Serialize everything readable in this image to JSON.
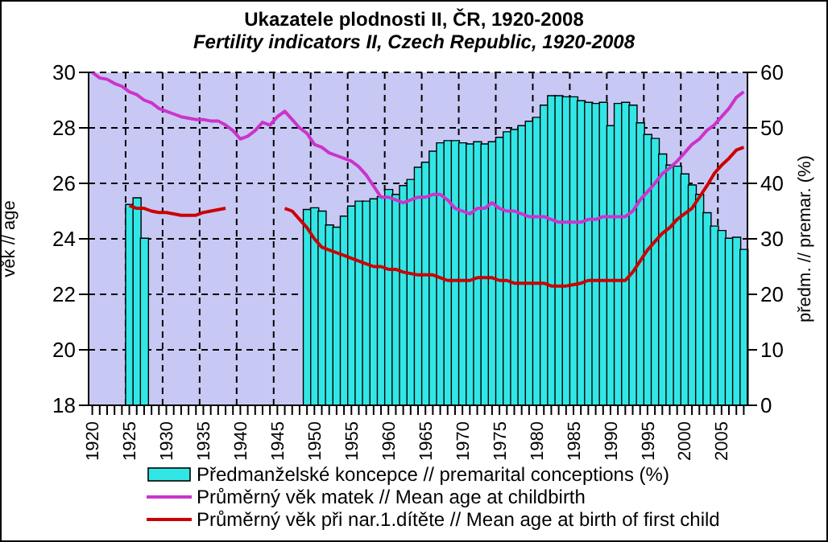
{
  "chart_data": {
    "type": "bar",
    "title": "Ukazatele plodnosti II, ČR, 1920-2008",
    "subtitle": "Fertility indicators II, Czech Republic, 1920-2008",
    "ylabel": "věk // age",
    "y2label": "předm. // premar. (%)",
    "categories": [
      "1920",
      null,
      null,
      null,
      null,
      "1925",
      null,
      null,
      null,
      null,
      "1930",
      null,
      null,
      null,
      null,
      "1935",
      null,
      null,
      null,
      null,
      "1940",
      null,
      null,
      null,
      null,
      "1945",
      null,
      null,
      null,
      null,
      "1950",
      null,
      null,
      null,
      null,
      "1955",
      null,
      null,
      null,
      null,
      "1960",
      null,
      null,
      null,
      null,
      "1965",
      null,
      null,
      null,
      null,
      "1970",
      null,
      null,
      null,
      null,
      "1975",
      null,
      null,
      null,
      null,
      "1980",
      null,
      null,
      null,
      null,
      "1985",
      null,
      null,
      null,
      null,
      "1990",
      null,
      null,
      null,
      null,
      "1995",
      null,
      null,
      null,
      null,
      "2000",
      null,
      null,
      null,
      null,
      "2005",
      null,
      null,
      null
    ],
    "series": [
      {
        "name": "Předmanželské koncepce // premarital conceptions (%)",
        "axis": "y2",
        "color": "#33e6e6",
        "values": [
          null,
          null,
          null,
          null,
          null,
          36.2,
          37.4,
          30.1,
          null,
          null,
          null,
          null,
          null,
          null,
          null,
          null,
          null,
          null,
          null,
          null,
          null,
          null,
          null,
          null,
          null,
          null,
          null,
          null,
          null,
          35.3,
          35.6,
          35.0,
          32.5,
          32.1,
          34.1,
          35.9,
          36.8,
          36.8,
          37.2,
          37.6,
          38.9,
          38.0,
          39.6,
          40.7,
          42.9,
          43.8,
          45.8,
          47.3,
          47.7,
          47.7,
          47.3,
          47.1,
          47.5,
          47.1,
          47.5,
          48.3,
          49.3,
          49.7,
          50.4,
          51.2,
          51.9,
          54.1,
          55.8,
          55.8,
          55.6,
          55.6,
          54.9,
          54.6,
          54.4,
          54.6,
          50.4,
          54.4,
          54.6,
          54.1,
          50.9,
          48.8,
          48.1,
          45.3,
          43.3,
          43.1,
          41.7,
          39.7,
          38.0,
          34.7,
          32.3,
          31.5,
          30.1,
          30.3,
          28.1
        ]
      },
      {
        "name": "Průměrný věk matek // Mean age at childbirth",
        "type": "line",
        "axis": "y",
        "color": "#cc33cc",
        "values": [
          30.0,
          29.8,
          29.75,
          29.6,
          29.5,
          29.3,
          29.2,
          29.0,
          28.9,
          28.7,
          28.6,
          28.5,
          28.4,
          28.35,
          28.3,
          28.3,
          28.25,
          28.25,
          28.1,
          27.9,
          27.6,
          27.7,
          27.9,
          28.2,
          28.1,
          28.4,
          28.6,
          28.3,
          28.0,
          27.8,
          27.4,
          27.3,
          27.1,
          27.0,
          26.9,
          26.8,
          26.6,
          26.3,
          25.9,
          25.5,
          25.5,
          25.4,
          25.3,
          25.4,
          25.5,
          25.5,
          25.6,
          25.6,
          25.4,
          25.1,
          25.0,
          24.9,
          25.1,
          25.1,
          25.3,
          25.1,
          25.0,
          25.0,
          24.9,
          24.8,
          24.8,
          24.8,
          24.7,
          24.6,
          24.6,
          24.6,
          24.6,
          24.7,
          24.7,
          24.8,
          24.8,
          24.8,
          24.8,
          25.0,
          25.4,
          25.7,
          26.0,
          26.35,
          26.55,
          26.8,
          27.1,
          27.4,
          27.6,
          27.9,
          28.1,
          28.4,
          28.7,
          29.1,
          29.3
        ]
      },
      {
        "name": "Průměrný věk při nar.1.dítěte // Mean age at birth of first child",
        "type": "line",
        "axis": "y",
        "color": "#cc0000",
        "values": [
          null,
          null,
          null,
          null,
          null,
          25.2,
          25.1,
          25.1,
          25.0,
          24.95,
          24.95,
          24.9,
          24.85,
          24.85,
          24.85,
          24.95,
          25.0,
          25.05,
          25.1,
          null,
          null,
          null,
          null,
          null,
          null,
          null,
          25.1,
          25.0,
          24.7,
          24.4,
          24.0,
          23.7,
          23.6,
          23.5,
          23.4,
          23.3,
          23.2,
          23.1,
          23.0,
          23.0,
          22.9,
          22.9,
          22.8,
          22.75,
          22.7,
          22.7,
          22.7,
          22.6,
          22.5,
          22.5,
          22.5,
          22.5,
          22.6,
          22.6,
          22.6,
          22.5,
          22.5,
          22.4,
          22.4,
          22.4,
          22.4,
          22.4,
          22.3,
          22.3,
          22.3,
          22.35,
          22.4,
          22.5,
          22.5,
          22.5,
          22.5,
          22.5,
          22.5,
          22.8,
          23.2,
          23.6,
          23.9,
          24.2,
          24.4,
          24.7,
          24.9,
          25.1,
          25.5,
          25.9,
          26.35,
          26.65,
          26.9,
          27.2,
          27.3
        ]
      }
    ],
    "ylim": [
      18,
      30
    ],
    "yticks": [
      18,
      20,
      22,
      24,
      26,
      28,
      30
    ],
    "y2lim": [
      0,
      60
    ],
    "y2ticks": [
      0,
      10,
      20,
      30,
      40,
      50,
      60
    ],
    "grid": true,
    "legend": "bottom",
    "line_style": "solid",
    "marker": "none"
  }
}
